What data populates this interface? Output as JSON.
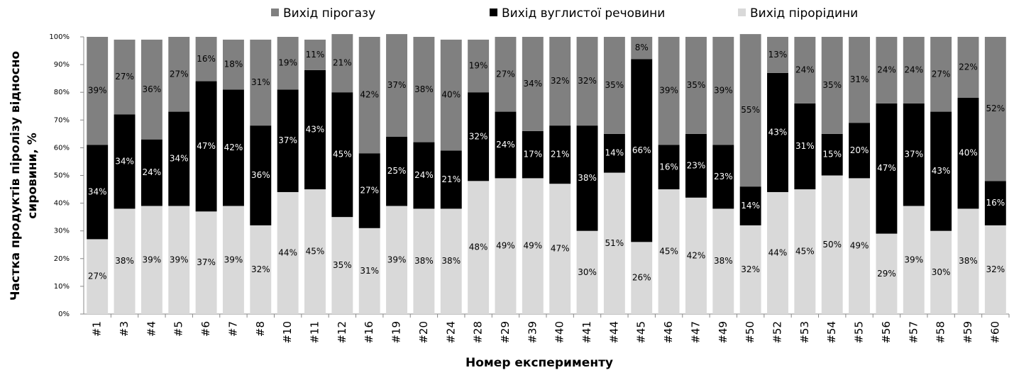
{
  "chart_data": {
    "type": "stacked_bar_100",
    "x_label": "Номер експерименту",
    "y_label": [
      "Частка продуктів піролізу відносно",
      "сировини, %"
    ],
    "categories": [
      "#1",
      "#3",
      "#4",
      "#5",
      "#6",
      "#7",
      "#8",
      "#10",
      "#11",
      "#12",
      "#16",
      "#19",
      "#20",
      "#24",
      "#28",
      "#29",
      "#39",
      "#40",
      "#41",
      "#44",
      "#45",
      "#46",
      "#47",
      "#49",
      "#50",
      "#52",
      "#53",
      "#54",
      "#55",
      "#56",
      "#57",
      "#58",
      "#59",
      "#60"
    ],
    "series": [
      {
        "name": "Вихід пірогазу",
        "color": "#808080",
        "label_color": "#000000",
        "values": [
          39,
          27,
          36,
          27,
          16,
          18,
          31,
          19,
          11,
          21,
          42,
          37,
          38,
          40,
          19,
          27,
          34,
          32,
          32,
          35,
          8,
          39,
          35,
          39,
          55,
          13,
          24,
          35,
          31,
          24,
          24,
          27,
          22,
          52
        ],
        "value_labels": [
          "39%",
          "27%",
          "36%",
          "27%",
          "16%",
          "18%",
          "31%",
          "19%",
          "11%",
          "21%",
          "42%",
          "37%",
          "38%",
          "40%",
          "19%",
          "27%",
          "34%",
          "32%",
          "32%",
          "35%",
          "8%",
          "39%",
          "35%",
          "39%",
          "55%",
          "13%",
          "24%",
          "35%",
          "31%",
          "24%",
          "24%",
          "27%",
          "22%",
          "52%"
        ]
      },
      {
        "name": "Вихід вуглистої речовини",
        "color": "#000000",
        "label_color": "#ffffff",
        "values": [
          34,
          34,
          24,
          34,
          47,
          42,
          36,
          37,
          43,
          45,
          27,
          25,
          24,
          21,
          32,
          24,
          17,
          21,
          38,
          14,
          66,
          16,
          23,
          23,
          14,
          43,
          31,
          15,
          20,
          47,
          37,
          43,
          40,
          16
        ],
        "value_labels": [
          "34%",
          "34%",
          "24%",
          "34%",
          "47%",
          "42%",
          "36%",
          "37%",
          "43%",
          "45%",
          "27%",
          "25%",
          "24%",
          "21%",
          "32%",
          "24%",
          "17%",
          "21%",
          "38%",
          "14%",
          "66%",
          "16%",
          "23%",
          "23%",
          "14%",
          "43%",
          "31%",
          "15%",
          "20%",
          "47%",
          "37%",
          "43%",
          "40%",
          "16%"
        ]
      },
      {
        "name": "Вихід пірорідини",
        "color": "#d9d9d9",
        "label_color": "#000000",
        "values": [
          27,
          38,
          39,
          39,
          37,
          39,
          32,
          44,
          45,
          35,
          31,
          39,
          38,
          38,
          48,
          49,
          49,
          47,
          30,
          51,
          26,
          45,
          42,
          38,
          32,
          44,
          45,
          50,
          49,
          29,
          39,
          30,
          38,
          32
        ],
        "value_labels": [
          "27%",
          "38%",
          "39%",
          "39%",
          "37%",
          "39%",
          "32%",
          "44%",
          "45%",
          "35%",
          "31%",
          "39%",
          "38%",
          "38%",
          "48%",
          "49%",
          "49%",
          "47%",
          "30%",
          "51%",
          "26%",
          "45%",
          "42%",
          "38%",
          "32%",
          "44%",
          "45%",
          "50%",
          "49%",
          "29%",
          "39%",
          "30%",
          "38%",
          "32%"
        ]
      }
    ],
    "ylim": [
      0,
      100
    ],
    "yticks": [
      {
        "value": 0,
        "label": "0%"
      },
      {
        "value": 10,
        "label": "10%"
      },
      {
        "value": 20,
        "label": "20%"
      },
      {
        "value": 30,
        "label": "30%"
      },
      {
        "value": 40,
        "label": "40%"
      },
      {
        "value": 50,
        "label": "50%"
      },
      {
        "value": 60,
        "label": "60%"
      },
      {
        "value": 70,
        "label": "70%"
      },
      {
        "value": 80,
        "label": "80%"
      },
      {
        "value": 90,
        "label": "90%"
      },
      {
        "value": 100,
        "label": "100%"
      }
    ],
    "legend": "top"
  }
}
